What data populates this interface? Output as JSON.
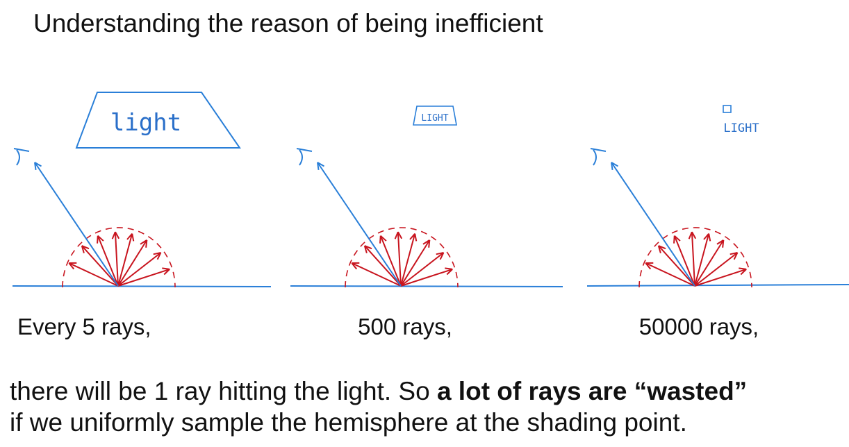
{
  "title": "Understanding the reason of being inefficient",
  "panels": [
    {
      "light_label": "light",
      "caption": "Every 5 rays,"
    },
    {
      "light_label": "LIGHT",
      "caption": "500 rays,"
    },
    {
      "light_label": "LIGHT",
      "caption": "50000 rays,"
    }
  ],
  "conclusion": {
    "line1_plain": "there will be 1 ray hitting the light. So ",
    "line1_bold": "a lot of rays are “wasted”",
    "line2": "if we uniformly sample the hemisphere at the shading point."
  }
}
